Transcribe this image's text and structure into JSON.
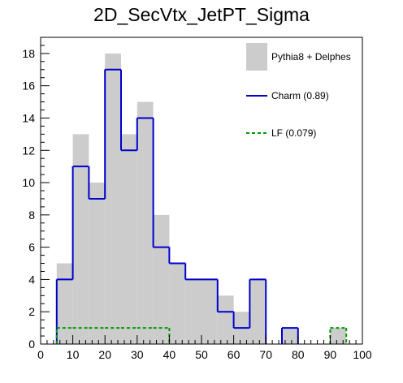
{
  "chart_data": {
    "type": "bar",
    "title": "2D_SecVtx_JetPT_Sigma",
    "xlim": [
      0,
      100
    ],
    "ylim": [
      0,
      19
    ],
    "bin_width": 5,
    "x_ticks": [
      0,
      10,
      20,
      30,
      40,
      50,
      60,
      70,
      80,
      90,
      100
    ],
    "y_ticks": [
      0,
      2,
      4,
      6,
      8,
      10,
      12,
      14,
      16,
      18
    ],
    "bin_edges": [
      0,
      5,
      10,
      15,
      20,
      25,
      30,
      35,
      40,
      45,
      50,
      55,
      60,
      65,
      70,
      75,
      80,
      85,
      90,
      95,
      100
    ],
    "series": [
      {
        "name": "Pythia8 + Delphes",
        "style": "filled",
        "color": "#cccccc",
        "values": [
          0,
          5,
          13,
          10,
          18,
          13,
          15,
          8,
          5,
          4,
          4,
          3,
          2,
          4,
          0,
          1,
          0,
          0,
          1,
          0
        ]
      },
      {
        "name": "Charm (0.89)",
        "style": "solid",
        "color": "#0000cc",
        "values": [
          0,
          4,
          11,
          9,
          17,
          12,
          14,
          6,
          5,
          4,
          4,
          2,
          1,
          4,
          0,
          1,
          0,
          0,
          0,
          0
        ]
      },
      {
        "name": "LF (0.079)",
        "style": "dashed",
        "color": "#009900",
        "values": [
          0,
          1,
          1,
          1,
          1,
          1,
          1,
          1,
          0,
          0,
          0,
          0,
          0,
          0,
          0,
          0,
          0,
          0,
          1,
          0
        ]
      }
    ],
    "legend_position": "top-right",
    "grid": false
  }
}
